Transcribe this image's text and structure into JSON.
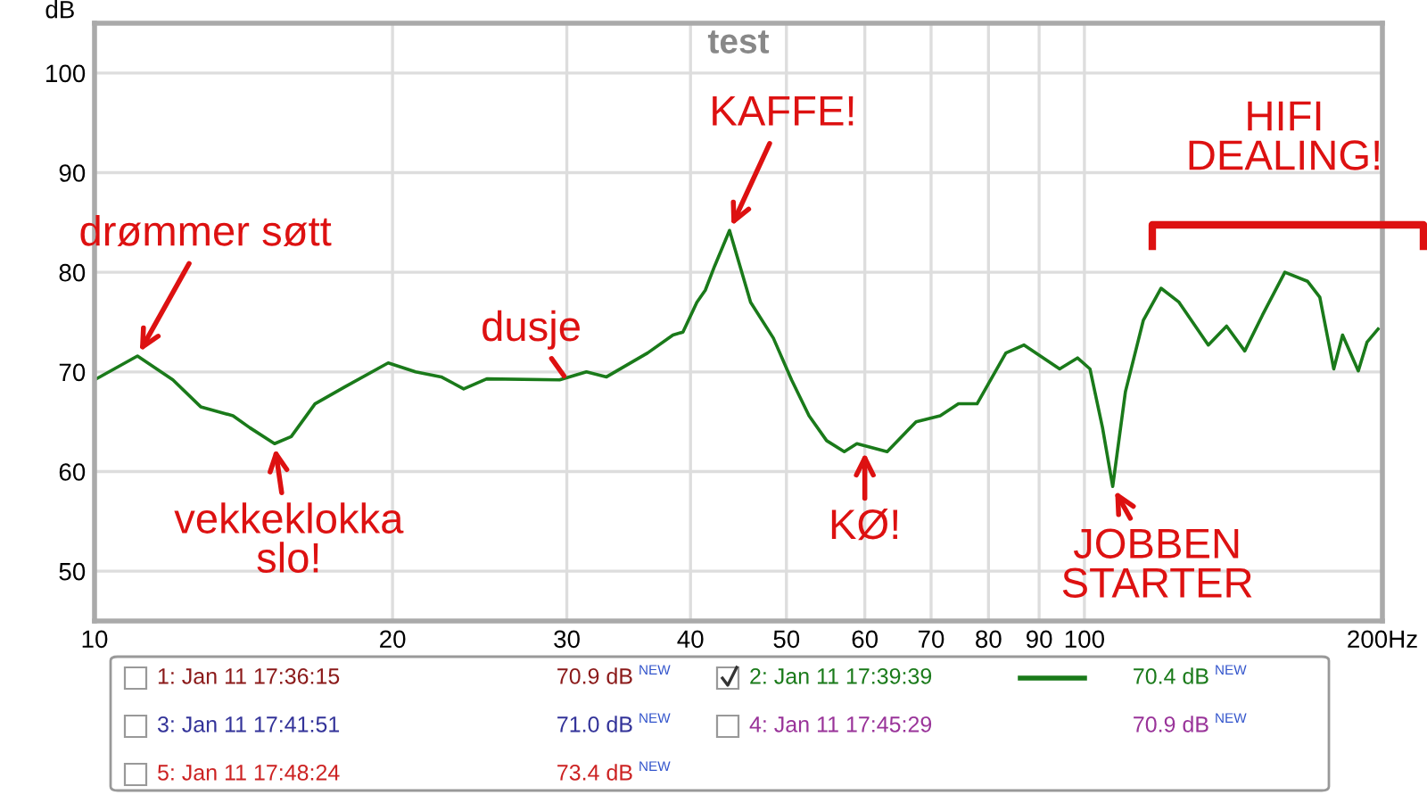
{
  "chart_data": {
    "type": "line",
    "title": "test",
    "ylabel": "dB",
    "log": "x",
    "xlim": [
      10,
      200
    ],
    "xticks": [
      10,
      20,
      30,
      40,
      50,
      60,
      70,
      80,
      90,
      100,
      {
        "value": 200,
        "label": "200Hz"
      }
    ],
    "ylim": [
      45,
      105
    ],
    "yticks": [
      50,
      60,
      70,
      80,
      90,
      100
    ],
    "grid": true,
    "legend": "bottom",
    "marker": "none",
    "line_style": "solid",
    "series": [
      {
        "name": "2: Jan 11 17:39:39",
        "color": "#1a7a1a",
        "x": [
          10,
          11.05,
          12.0,
          12.8,
          13.8,
          14.35,
          15.2,
          15.8,
          16.7,
          17.9,
          19.8,
          21.1,
          22.4,
          23.6,
          24.9,
          29.5,
          31.4,
          32.9,
          36.2,
          38.4,
          39.3,
          40.6,
          41.4,
          42.3,
          43.8,
          46.0,
          48.5,
          50.6,
          52.7,
          54.9,
          57.2,
          58.9,
          63.2,
          67.6,
          71.5,
          74.6,
          77.9,
          83.3,
          86.9,
          94.4,
          98.4,
          101.3,
          104.3,
          106.8,
          110.0,
          114.7,
          119.5,
          124.6,
          133.4,
          139.2,
          145.2,
          151.3,
          159.4,
          168.0,
          172.9,
          178.6,
          182.3,
          189.1,
          193.0,
          198.0
        ],
        "values": [
          69.2,
          71.6,
          69.2,
          66.5,
          65.6,
          64.4,
          62.8,
          63.5,
          66.8,
          68.5,
          70.9,
          70.0,
          69.5,
          68.3,
          69.3,
          69.2,
          70.0,
          69.5,
          71.9,
          73.7,
          74.0,
          77.0,
          78.2,
          80.6,
          84.2,
          77.0,
          73.4,
          69.2,
          65.6,
          63.1,
          62.0,
          62.8,
          62.0,
          65.0,
          65.6,
          66.8,
          66.8,
          71.9,
          72.7,
          70.3,
          71.4,
          70.3,
          64.4,
          58.5,
          68.0,
          75.2,
          78.4,
          77.0,
          72.7,
          74.6,
          72.1,
          75.7,
          80.0,
          79.1,
          77.5,
          70.3,
          73.7,
          70.1,
          73.0,
          74.3
        ]
      }
    ],
    "annotations": [
      {
        "text": "drømmer søtt",
        "x": 11.05,
        "y": 71.6
      },
      {
        "text": "vekkeklokka\nslo!",
        "x": 15.2,
        "y": 62.8
      },
      {
        "text": "dusje",
        "x": 30,
        "y": 69.2
      },
      {
        "text": "KAFFE!",
        "x": 43.8,
        "y": 84.2
      },
      {
        "text": "KØ!",
        "x": 60,
        "y": 62.4
      },
      {
        "text": "JOBBEN\nSTARTER",
        "x": 106.8,
        "y": 58.5
      },
      "HIFI\nDEALING!",
      "1: Jan 11 17:36:15",
      "70.9 dB",
      "NEW",
      "70.4 dB",
      "NEW",
      "3: Jan 11 17:41:51",
      "71.0 dB",
      "NEW",
      "4: Jan 11 17:45:29",
      "70.9 dB",
      "NEW",
      "5: Jan 11 17:48:24",
      "73.4 dB",
      "NEW"
    ]
  }
}
